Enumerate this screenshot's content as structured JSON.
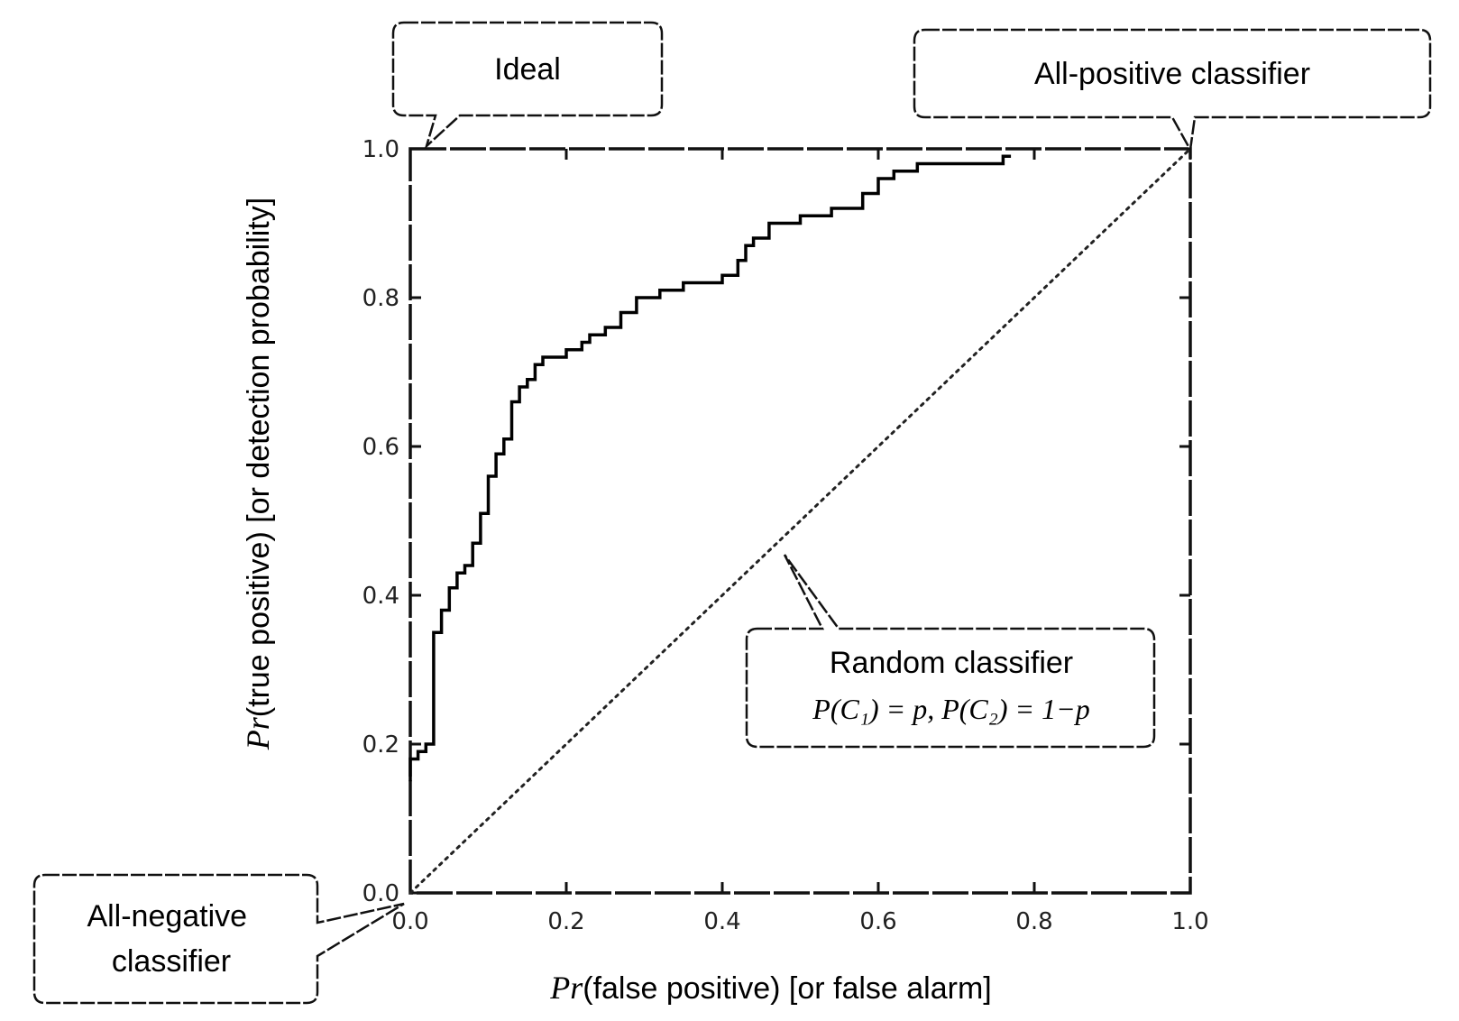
{
  "chart_data": {
    "type": "line",
    "xlabel_var": "Pr",
    "xlabel": "(false positive) [or false alarm]",
    "ylabel_var": "Pr",
    "ylabel": "(true positive) [or detection probability]",
    "xlim": [
      0,
      1
    ],
    "ylim": [
      0,
      1
    ],
    "x_ticks": [
      "0.0",
      "0.2",
      "0.4",
      "0.6",
      "0.8",
      "1.0"
    ],
    "y_ticks": [
      "0.0",
      "0.2",
      "0.4",
      "0.6",
      "0.8",
      "1.0"
    ],
    "grid": false,
    "series": [
      {
        "style": "solid",
        "x": [
          0.0,
          0.0,
          0.01,
          0.01,
          0.02,
          0.02,
          0.03,
          0.03,
          0.04,
          0.04,
          0.05,
          0.05,
          0.06,
          0.06,
          0.07,
          0.07,
          0.08,
          0.08,
          0.09,
          0.09,
          0.1,
          0.1,
          0.11,
          0.11,
          0.12,
          0.12,
          0.13,
          0.13,
          0.14,
          0.14,
          0.15,
          0.15,
          0.16,
          0.16,
          0.17,
          0.17,
          0.18,
          0.18,
          0.2,
          0.2,
          0.22,
          0.22,
          0.23,
          0.23,
          0.25,
          0.25,
          0.27,
          0.27,
          0.29,
          0.29,
          0.3,
          0.3,
          0.32,
          0.32,
          0.35,
          0.35,
          0.38,
          0.38,
          0.4,
          0.4,
          0.42,
          0.42,
          0.43,
          0.43,
          0.44,
          0.44,
          0.46,
          0.46,
          0.48,
          0.48,
          0.5,
          0.5,
          0.54,
          0.54,
          0.58,
          0.58,
          0.6,
          0.6,
          0.62,
          0.62,
          0.65,
          0.65,
          0.7,
          0.7,
          0.76,
          0.76,
          0.77
        ],
        "y": [
          0.15,
          0.18,
          0.18,
          0.19,
          0.19,
          0.2,
          0.2,
          0.35,
          0.35,
          0.38,
          0.38,
          0.41,
          0.41,
          0.43,
          0.43,
          0.44,
          0.44,
          0.47,
          0.47,
          0.51,
          0.51,
          0.56,
          0.56,
          0.59,
          0.59,
          0.61,
          0.61,
          0.66,
          0.66,
          0.68,
          0.68,
          0.69,
          0.69,
          0.71,
          0.71,
          0.72,
          0.72,
          0.72,
          0.72,
          0.73,
          0.73,
          0.74,
          0.74,
          0.75,
          0.75,
          0.76,
          0.76,
          0.78,
          0.78,
          0.8,
          0.8,
          0.8,
          0.8,
          0.81,
          0.81,
          0.82,
          0.82,
          0.82,
          0.82,
          0.83,
          0.83,
          0.85,
          0.85,
          0.87,
          0.87,
          0.88,
          0.88,
          0.9,
          0.9,
          0.9,
          0.9,
          0.91,
          0.91,
          0.92,
          0.92,
          0.94,
          0.94,
          0.96,
          0.96,
          0.97,
          0.97,
          0.98,
          0.98,
          0.98,
          0.98,
          0.99,
          0.99
        ]
      },
      {
        "style": "dotted",
        "x": [
          0,
          1
        ],
        "y": [
          0,
          1
        ]
      }
    ],
    "annotations": {
      "ideal": "Ideal",
      "all_positive": "All-positive classifier",
      "all_negative_line1": "All-negative",
      "all_negative_line2": "classifier",
      "random_title": "Random classifier",
      "random_formula": "P(C₁) = p, P(C₂) = 1−p"
    }
  }
}
